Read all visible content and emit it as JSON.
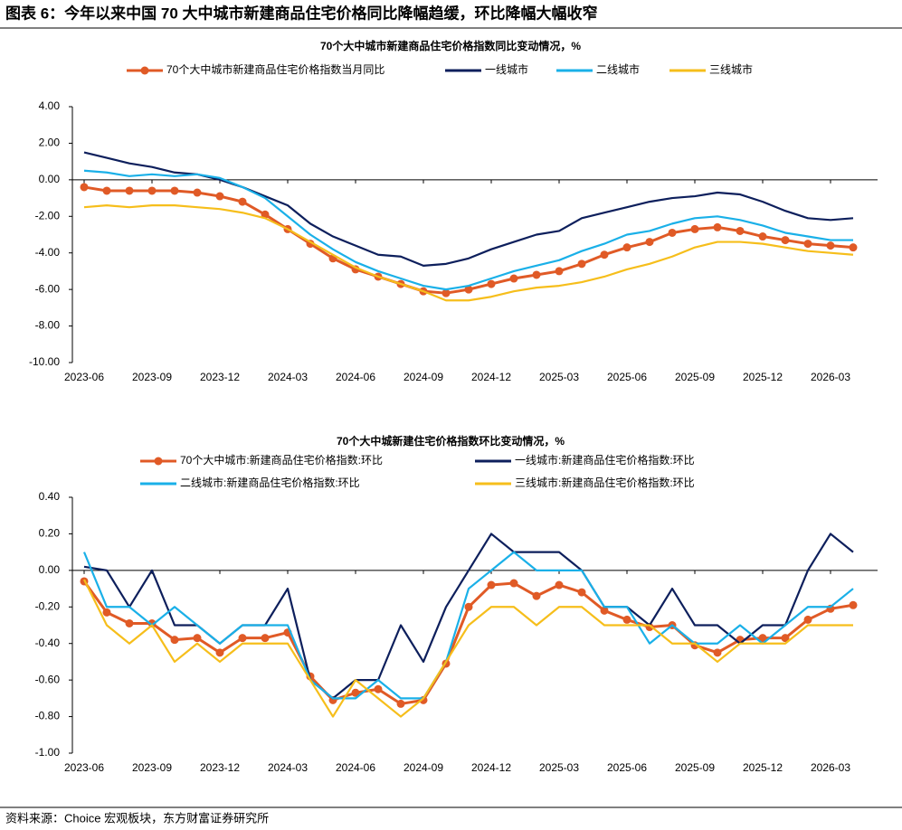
{
  "title": "图表 6：今年以来中国 70 大中城市新建商品住宅价格同比降幅趋缓，环比降幅大幅收窄",
  "source": "资料来源：Choice 宏观板块，东方财富证券研究所",
  "chart_data": [
    {
      "type": "line",
      "title": "70个大中城市新建商品住宅价格指数同比变动情况，%",
      "categories": [
        "2023-06",
        null,
        null,
        "2023-09",
        null,
        null,
        "2023-12",
        null,
        null,
        "2024-03",
        null,
        null,
        "2024-06",
        null,
        null,
        "2024-09",
        null,
        null,
        "2024-12",
        null,
        null,
        "2025-03",
        null,
        null,
        "2025-06",
        null,
        null,
        "2025-09",
        null,
        null,
        "2025-12",
        null,
        null,
        "2026-03",
        null
      ],
      "series": [
        {
          "name": "70个大中城市新建商品住宅价格指数当月同比",
          "color": "#e05a26",
          "marker": true,
          "values": [
            -0.4,
            -0.6,
            -0.6,
            -0.6,
            -0.6,
            -0.7,
            -0.9,
            -1.2,
            -1.9,
            -2.7,
            -3.5,
            -4.3,
            -4.9,
            -5.3,
            -5.7,
            -6.1,
            -6.2,
            -6.0,
            -5.7,
            -5.4,
            -5.2,
            -5.0,
            -4.6,
            -4.1,
            -3.7,
            -3.4,
            -2.9,
            -2.7,
            -2.6,
            -2.8,
            -3.1,
            -3.3,
            -3.5,
            -3.6,
            -3.7
          ]
        },
        {
          "name": "一线城市",
          "color": "#0d1f5c",
          "values": [
            1.5,
            1.2,
            0.9,
            0.7,
            0.4,
            0.3,
            0.0,
            -0.4,
            -0.9,
            -1.4,
            -2.4,
            -3.1,
            -3.6,
            -4.1,
            -4.2,
            -4.7,
            -4.6,
            -4.3,
            -3.8,
            -3.4,
            -3.0,
            -2.8,
            -2.1,
            -1.8,
            -1.5,
            -1.2,
            -1.0,
            -0.9,
            -0.7,
            -0.8,
            -1.2,
            -1.7,
            -2.1,
            -2.2,
            -2.1
          ]
        },
        {
          "name": "二线城市",
          "color": "#1ab0e8",
          "values": [
            0.5,
            0.4,
            0.2,
            0.3,
            0.2,
            0.3,
            0.1,
            -0.4,
            -1.0,
            -2.0,
            -3.0,
            -3.8,
            -4.5,
            -5.0,
            -5.4,
            -5.8,
            -6.0,
            -5.8,
            -5.4,
            -5.0,
            -4.7,
            -4.4,
            -3.9,
            -3.5,
            -3.0,
            -2.8,
            -2.4,
            -2.1,
            -2.0,
            -2.2,
            -2.5,
            -2.9,
            -3.1,
            -3.3,
            -3.3
          ]
        },
        {
          "name": "三线城市",
          "color": "#f6be1b",
          "values": [
            -1.5,
            -1.4,
            -1.5,
            -1.4,
            -1.4,
            -1.5,
            -1.6,
            -1.8,
            -2.1,
            -2.7,
            -3.4,
            -4.1,
            -4.8,
            -5.3,
            -5.7,
            -6.1,
            -6.6,
            -6.6,
            -6.4,
            -6.1,
            -5.9,
            -5.8,
            -5.6,
            -5.3,
            -4.9,
            -4.6,
            -4.2,
            -3.7,
            -3.4,
            -3.4,
            -3.5,
            -3.7,
            -3.9,
            -4.0,
            -4.1
          ]
        }
      ],
      "ylim": [
        -10,
        4
      ],
      "yticks": [
        {
          "value": 4,
          "label": "4.00"
        },
        {
          "value": 2,
          "label": "2.00"
        },
        {
          "value": 0,
          "label": "0.00"
        },
        {
          "value": -2,
          "label": "-2.00"
        },
        {
          "value": -4,
          "label": "-4.00"
        },
        {
          "value": -6,
          "label": "-6.00"
        },
        {
          "value": -8,
          "label": "-8.00"
        },
        {
          "value": -10,
          "label": "-10.00"
        }
      ],
      "grid": false,
      "legend": "top"
    },
    {
      "type": "line",
      "title": "70个大中城新建住宅价格指数环比变动情况，%",
      "categories": [
        "2023-06",
        null,
        null,
        "2023-09",
        null,
        null,
        "2023-12",
        null,
        null,
        "2024-03",
        null,
        null,
        "2024-06",
        null,
        null,
        "2024-09",
        null,
        null,
        "2024-12",
        null,
        null,
        "2025-03",
        null,
        null,
        "2025-06",
        null,
        null,
        "2025-09",
        null,
        null,
        "2025-12",
        null,
        null,
        "2026-03",
        null
      ],
      "series": [
        {
          "name": "70个大中城市:新建商品住宅价格指数:环比",
          "color": "#e05a26",
          "marker": true,
          "values": [
            -0.06,
            -0.23,
            -0.29,
            -0.29,
            -0.38,
            -0.37,
            -0.45,
            -0.37,
            -0.37,
            -0.34,
            -0.58,
            -0.71,
            -0.67,
            -0.65,
            -0.73,
            -0.71,
            -0.51,
            -0.2,
            -0.08,
            -0.07,
            -0.14,
            -0.08,
            -0.12,
            -0.22,
            -0.27,
            -0.31,
            -0.3,
            -0.41,
            -0.45,
            -0.38,
            -0.37,
            -0.37,
            -0.27,
            -0.21,
            -0.19
          ]
        },
        {
          "name": "一线城市:新建商品住宅价格指数:环比",
          "color": "#0d1f5c",
          "values": [
            0.02,
            0.0,
            -0.2,
            0.0,
            -0.3,
            -0.3,
            -0.4,
            -0.3,
            -0.3,
            -0.1,
            -0.6,
            -0.7,
            -0.6,
            -0.6,
            -0.3,
            -0.5,
            -0.2,
            0.0,
            0.2,
            0.1,
            0.1,
            0.1,
            0.0,
            -0.2,
            -0.2,
            -0.3,
            -0.1,
            -0.3,
            -0.3,
            -0.4,
            -0.3,
            -0.3,
            0.0,
            0.2,
            0.1
          ]
        },
        {
          "name": "二线城市:新建商品住宅价格指数:环比",
          "color": "#1ab0e8",
          "values": [
            0.1,
            -0.2,
            -0.2,
            -0.3,
            -0.2,
            -0.3,
            -0.4,
            -0.3,
            -0.3,
            -0.3,
            -0.6,
            -0.7,
            -0.7,
            -0.6,
            -0.7,
            -0.7,
            -0.5,
            -0.1,
            0.0,
            0.1,
            0.0,
            0.0,
            0.0,
            -0.2,
            -0.2,
            -0.4,
            -0.3,
            -0.4,
            -0.4,
            -0.3,
            -0.4,
            -0.3,
            -0.2,
            -0.2,
            -0.1
          ]
        },
        {
          "name": "三线城市:新建商品住宅价格指数:环比",
          "color": "#f6be1b",
          "values": [
            -0.05,
            -0.3,
            -0.4,
            -0.3,
            -0.5,
            -0.4,
            -0.5,
            -0.4,
            -0.4,
            -0.4,
            -0.6,
            -0.8,
            -0.6,
            -0.7,
            -0.8,
            -0.7,
            -0.5,
            -0.3,
            -0.2,
            -0.2,
            -0.3,
            -0.2,
            -0.2,
            -0.3,
            -0.3,
            -0.3,
            -0.4,
            -0.4,
            -0.5,
            -0.4,
            -0.4,
            -0.4,
            -0.3,
            -0.3,
            -0.3
          ]
        }
      ],
      "ylim": [
        -1,
        0.4
      ],
      "yticks": [
        {
          "value": 0.4,
          "label": "0.40"
        },
        {
          "value": 0.2,
          "label": "0.20"
        },
        {
          "value": 0,
          "label": "0.00"
        },
        {
          "value": -0.2,
          "label": "-0.20"
        },
        {
          "value": -0.4,
          "label": "-0.40"
        },
        {
          "value": -0.6,
          "label": "-0.60"
        },
        {
          "value": -0.8,
          "label": "-0.80"
        },
        {
          "value": -1,
          "label": "-1.00"
        }
      ],
      "grid": false,
      "legend": "top"
    }
  ]
}
